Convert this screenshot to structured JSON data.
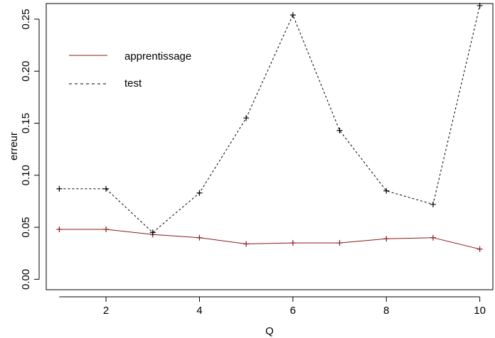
{
  "chart_data": {
    "type": "line",
    "title": "",
    "xlabel": "Q",
    "ylabel": "erreur",
    "xlim": [
      0.72,
      10.28
    ],
    "ylim": [
      -0.01,
      0.265
    ],
    "xticks": [
      2,
      4,
      6,
      8,
      10
    ],
    "yticks": [
      0.0,
      0.05,
      0.1,
      0.15,
      0.2,
      0.25
    ],
    "ytick_labels": [
      "0.00",
      "0.05",
      "0.10",
      "0.15",
      "0.20",
      "0.25"
    ],
    "grid": false,
    "legend_position": "top-left",
    "x": [
      1,
      2,
      3,
      4,
      5,
      6,
      7,
      8,
      9,
      10
    ],
    "series": [
      {
        "name": "apprentissage",
        "line_style": "solid",
        "color": "#8b1a1a",
        "marker": "+",
        "values": [
          0.048,
          0.048,
          0.043,
          0.04,
          0.034,
          0.035,
          0.035,
          0.039,
          0.04,
          0.029
        ]
      },
      {
        "name": "test",
        "line_style": "dashed",
        "color": "#000000",
        "marker": "+",
        "values": [
          0.087,
          0.087,
          0.045,
          0.083,
          0.155,
          0.254,
          0.143,
          0.085,
          0.072,
          0.263
        ]
      }
    ]
  }
}
